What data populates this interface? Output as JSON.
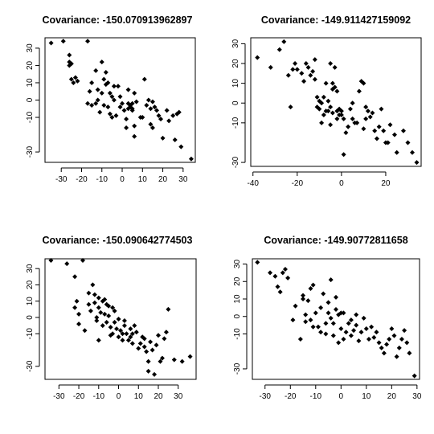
{
  "chart_data": [
    {
      "type": "scatter",
      "title": "Covariance: -150.070913962897",
      "xlabel": "",
      "ylabel": "",
      "xlim": [
        -38,
        36
      ],
      "ylim": [
        -36,
        36
      ],
      "xticks": [
        -30,
        -20,
        -10,
        0,
        10,
        20,
        30
      ],
      "yticks": [
        -30,
        -10,
        0,
        10,
        20,
        30
      ],
      "grid": false,
      "points": [
        [
          -35,
          33
        ],
        [
          -29,
          34
        ],
        [
          -26,
          26
        ],
        [
          -26,
          22
        ],
        [
          -25,
          21
        ],
        [
          -26,
          20
        ],
        [
          -25,
          12
        ],
        [
          -24,
          10
        ],
        [
          -23,
          13
        ],
        [
          -22,
          11
        ],
        [
          -17,
          34
        ],
        [
          -13,
          17
        ],
        [
          -15,
          10
        ],
        [
          -16,
          5
        ],
        [
          -17,
          -2
        ],
        [
          -15,
          -3
        ],
        [
          -13,
          -2
        ],
        [
          -12,
          6
        ],
        [
          -12,
          0
        ],
        [
          -11,
          -7
        ],
        [
          -10,
          22
        ],
        [
          -9,
          12
        ],
        [
          -10,
          4
        ],
        [
          -9,
          -3
        ],
        [
          -8,
          16
        ],
        [
          -8,
          9
        ],
        [
          -7,
          10
        ],
        [
          -7,
          -4
        ],
        [
          -6,
          4
        ],
        [
          -6,
          -8
        ],
        [
          -5,
          2
        ],
        [
          -5,
          -10
        ],
        [
          -4,
          8
        ],
        [
          -4,
          0
        ],
        [
          -3,
          -9
        ],
        [
          -2,
          8
        ],
        [
          -1,
          2
        ],
        [
          -1,
          -4
        ],
        [
          0,
          -2
        ],
        [
          1,
          -6
        ],
        [
          2,
          -11
        ],
        [
          2,
          -16
        ],
        [
          3,
          6
        ],
        [
          3,
          -2
        ],
        [
          3,
          -5
        ],
        [
          4,
          -3
        ],
        [
          4,
          -4
        ],
        [
          5,
          -6
        ],
        [
          5,
          -2
        ],
        [
          5,
          -5
        ],
        [
          6,
          -15
        ],
        [
          6,
          -21
        ],
        [
          6,
          4
        ],
        [
          7,
          -1
        ],
        [
          9,
          -10
        ],
        [
          10,
          -10
        ],
        [
          11,
          12
        ],
        [
          12,
          -3
        ],
        [
          13,
          0
        ],
        [
          14,
          -5
        ],
        [
          14,
          -14
        ],
        [
          15,
          -16
        ],
        [
          15,
          -1
        ],
        [
          16,
          -4
        ],
        [
          17,
          -6
        ],
        [
          18,
          -9
        ],
        [
          19,
          -11
        ],
        [
          20,
          -22
        ],
        [
          22,
          -6
        ],
        [
          23,
          -12
        ],
        [
          25,
          -9
        ],
        [
          26,
          -23
        ],
        [
          27,
          -8
        ],
        [
          28,
          -7
        ],
        [
          29,
          -27
        ],
        [
          34,
          -34
        ]
      ]
    },
    {
      "type": "scatter",
      "title": "Covariance: -149.911427159092",
      "xlabel": "",
      "ylabel": "",
      "xlim": [
        -41,
        36
      ],
      "ylim": [
        -32,
        33
      ],
      "xticks": [
        -40,
        -20,
        0,
        20
      ],
      "yticks": [
        -30,
        -10,
        0,
        10,
        20,
        30
      ],
      "grid": false,
      "points": [
        [
          -38,
          23
        ],
        [
          -32,
          18
        ],
        [
          -28,
          27
        ],
        [
          -26,
          31
        ],
        [
          -24,
          14
        ],
        [
          -23,
          -2
        ],
        [
          -21,
          20
        ],
        [
          -22,
          17
        ],
        [
          -20,
          17
        ],
        [
          -18,
          15
        ],
        [
          -17,
          11
        ],
        [
          -16,
          20
        ],
        [
          -15,
          18
        ],
        [
          -14,
          14
        ],
        [
          -13,
          16
        ],
        [
          -12,
          12
        ],
        [
          -12,
          22
        ],
        [
          -11,
          3
        ],
        [
          -11,
          -2
        ],
        [
          -10,
          -3
        ],
        [
          -10,
          1
        ],
        [
          -9,
          0
        ],
        [
          -9,
          -10
        ],
        [
          -8,
          -6
        ],
        [
          -8,
          3
        ],
        [
          -7,
          -4
        ],
        [
          -7,
          10
        ],
        [
          -6,
          -4
        ],
        [
          -6,
          1
        ],
        [
          -5,
          -2
        ],
        [
          -5,
          -11
        ],
        [
          -5,
          20
        ],
        [
          -4,
          7
        ],
        [
          -4,
          -5
        ],
        [
          -4,
          10
        ],
        [
          -3,
          8
        ],
        [
          -3,
          18
        ],
        [
          -2,
          6
        ],
        [
          -2,
          -4
        ],
        [
          -2,
          -8
        ],
        [
          -1,
          -3
        ],
        [
          -1,
          -6
        ],
        [
          0,
          -4
        ],
        [
          0,
          -6
        ],
        [
          1,
          -26
        ],
        [
          1,
          -8
        ],
        [
          2,
          -15
        ],
        [
          3,
          -12
        ],
        [
          4,
          -3
        ],
        [
          5,
          -8
        ],
        [
          5,
          0
        ],
        [
          6,
          -10
        ],
        [
          7,
          -10
        ],
        [
          8,
          6
        ],
        [
          9,
          11
        ],
        [
          10,
          10
        ],
        [
          10,
          -13
        ],
        [
          11,
          -8
        ],
        [
          11,
          -2
        ],
        [
          12,
          -4
        ],
        [
          13,
          -7
        ],
        [
          14,
          -5
        ],
        [
          15,
          -14
        ],
        [
          16,
          -18
        ],
        [
          17,
          -12
        ],
        [
          18,
          -3
        ],
        [
          19,
          -14
        ],
        [
          20,
          -20
        ],
        [
          21,
          -20
        ],
        [
          22,
          -11
        ],
        [
          24,
          -16
        ],
        [
          25,
          -25
        ],
        [
          28,
          -14
        ],
        [
          30,
          -20
        ],
        [
          32,
          -25
        ],
        [
          34,
          -30
        ]
      ]
    },
    {
      "type": "scatter",
      "title": "Covariance: -150.090642774503",
      "xlabel": "",
      "ylabel": "",
      "xlim": [
        -37,
        39
      ],
      "ylim": [
        -38,
        36
      ],
      "xticks": [
        -30,
        -20,
        -10,
        0,
        10,
        20,
        30
      ],
      "yticks": [
        -30,
        -10,
        0,
        10,
        20,
        30
      ],
      "grid": false,
      "points": [
        [
          -34,
          35
        ],
        [
          -26,
          33
        ],
        [
          -22,
          6
        ],
        [
          -22,
          25
        ],
        [
          -21,
          10
        ],
        [
          -20,
          2
        ],
        [
          -20,
          -4
        ],
        [
          -18,
          35
        ],
        [
          -17,
          -8
        ],
        [
          -15,
          8
        ],
        [
          -15,
          15
        ],
        [
          -14,
          4
        ],
        [
          -13,
          20
        ],
        [
          -12,
          14
        ],
        [
          -12,
          9
        ],
        [
          -11,
          0
        ],
        [
          -11,
          -2
        ],
        [
          -10,
          12
        ],
        [
          -10,
          6
        ],
        [
          -10,
          -14
        ],
        [
          -9,
          3
        ],
        [
          -8,
          10
        ],
        [
          -8,
          -5
        ],
        [
          -7,
          11
        ],
        [
          -7,
          2
        ],
        [
          -6,
          8
        ],
        [
          -6,
          -3
        ],
        [
          -5,
          7
        ],
        [
          -5,
          1
        ],
        [
          -4,
          -6
        ],
        [
          -4,
          -11
        ],
        [
          -3,
          6
        ],
        [
          -3,
          -10
        ],
        [
          -2,
          4
        ],
        [
          -2,
          -3
        ],
        [
          -1,
          -7
        ],
        [
          0,
          -12
        ],
        [
          0,
          -1
        ],
        [
          1,
          -8
        ],
        [
          2,
          -10
        ],
        [
          2,
          -14
        ],
        [
          3,
          -5
        ],
        [
          3,
          -2
        ],
        [
          4,
          -10
        ],
        [
          5,
          -14
        ],
        [
          6,
          -7
        ],
        [
          6,
          -12
        ],
        [
          7,
          -10
        ],
        [
          7,
          -16
        ],
        [
          8,
          -5
        ],
        [
          9,
          -9
        ],
        [
          10,
          -19
        ],
        [
          11,
          -16
        ],
        [
          12,
          -12
        ],
        [
          13,
          -18
        ],
        [
          13,
          -13
        ],
        [
          14,
          -21
        ],
        [
          15,
          -33
        ],
        [
          15,
          -27
        ],
        [
          16,
          -15
        ],
        [
          17,
          -20
        ],
        [
          18,
          -35
        ],
        [
          19,
          -17
        ],
        [
          20,
          -11
        ],
        [
          21,
          -27
        ],
        [
          22,
          -25
        ],
        [
          23,
          -13
        ],
        [
          24,
          -9
        ],
        [
          25,
          5
        ],
        [
          28,
          -26
        ],
        [
          32,
          -27
        ],
        [
          36,
          -24
        ]
      ]
    },
    {
      "type": "scatter",
      "title": "Covariance: -149.90772811658",
      "xlabel": "",
      "ylabel": "",
      "xlim": [
        -35,
        31
      ],
      "ylim": [
        -36,
        33
      ],
      "xticks": [
        -30,
        -20,
        -10,
        0,
        10,
        20,
        30
      ],
      "yticks": [
        -30,
        -10,
        0,
        10,
        20,
        30
      ],
      "grid": false,
      "points": [
        [
          -33,
          31
        ],
        [
          -28,
          25
        ],
        [
          -26,
          23
        ],
        [
          -25,
          17
        ],
        [
          -24,
          14
        ],
        [
          -23,
          25
        ],
        [
          -22,
          27
        ],
        [
          -21,
          22
        ],
        [
          -19,
          -2
        ],
        [
          -18,
          6
        ],
        [
          -16,
          -13
        ],
        [
          -15,
          10
        ],
        [
          -15,
          12
        ],
        [
          -14,
          -3
        ],
        [
          -14,
          1
        ],
        [
          -13,
          9
        ],
        [
          -12,
          16
        ],
        [
          -12,
          -2
        ],
        [
          -11,
          -6
        ],
        [
          -11,
          18
        ],
        [
          -10,
          2
        ],
        [
          -9,
          -6
        ],
        [
          -8,
          -9
        ],
        [
          -8,
          5
        ],
        [
          -7,
          13
        ],
        [
          -6,
          -10
        ],
        [
          -6,
          -4
        ],
        [
          -5,
          2
        ],
        [
          -5,
          8
        ],
        [
          -4,
          -1
        ],
        [
          -4,
          21
        ],
        [
          -3,
          -11
        ],
        [
          -3,
          -4
        ],
        [
          -2,
          4
        ],
        [
          -2,
          11
        ],
        [
          -1,
          -15
        ],
        [
          -1,
          1
        ],
        [
          0,
          2
        ],
        [
          0,
          -7
        ],
        [
          1,
          2
        ],
        [
          1,
          -13
        ],
        [
          2,
          -9
        ],
        [
          3,
          -4
        ],
        [
          4,
          -2
        ],
        [
          4,
          -11
        ],
        [
          5,
          -8
        ],
        [
          6,
          1
        ],
        [
          6,
          -5
        ],
        [
          7,
          -14
        ],
        [
          8,
          -9
        ],
        [
          9,
          -1
        ],
        [
          10,
          -7
        ],
        [
          11,
          -13
        ],
        [
          12,
          -6
        ],
        [
          13,
          -12
        ],
        [
          14,
          -9
        ],
        [
          15,
          -15
        ],
        [
          16,
          -18
        ],
        [
          17,
          -21
        ],
        [
          18,
          -16
        ],
        [
          19,
          -13
        ],
        [
          20,
          -7
        ],
        [
          21,
          -11
        ],
        [
          22,
          -23
        ],
        [
          23,
          -18
        ],
        [
          24,
          -13
        ],
        [
          25,
          -8
        ],
        [
          26,
          -15
        ],
        [
          27,
          -21
        ],
        [
          29,
          -34
        ]
      ]
    }
  ]
}
